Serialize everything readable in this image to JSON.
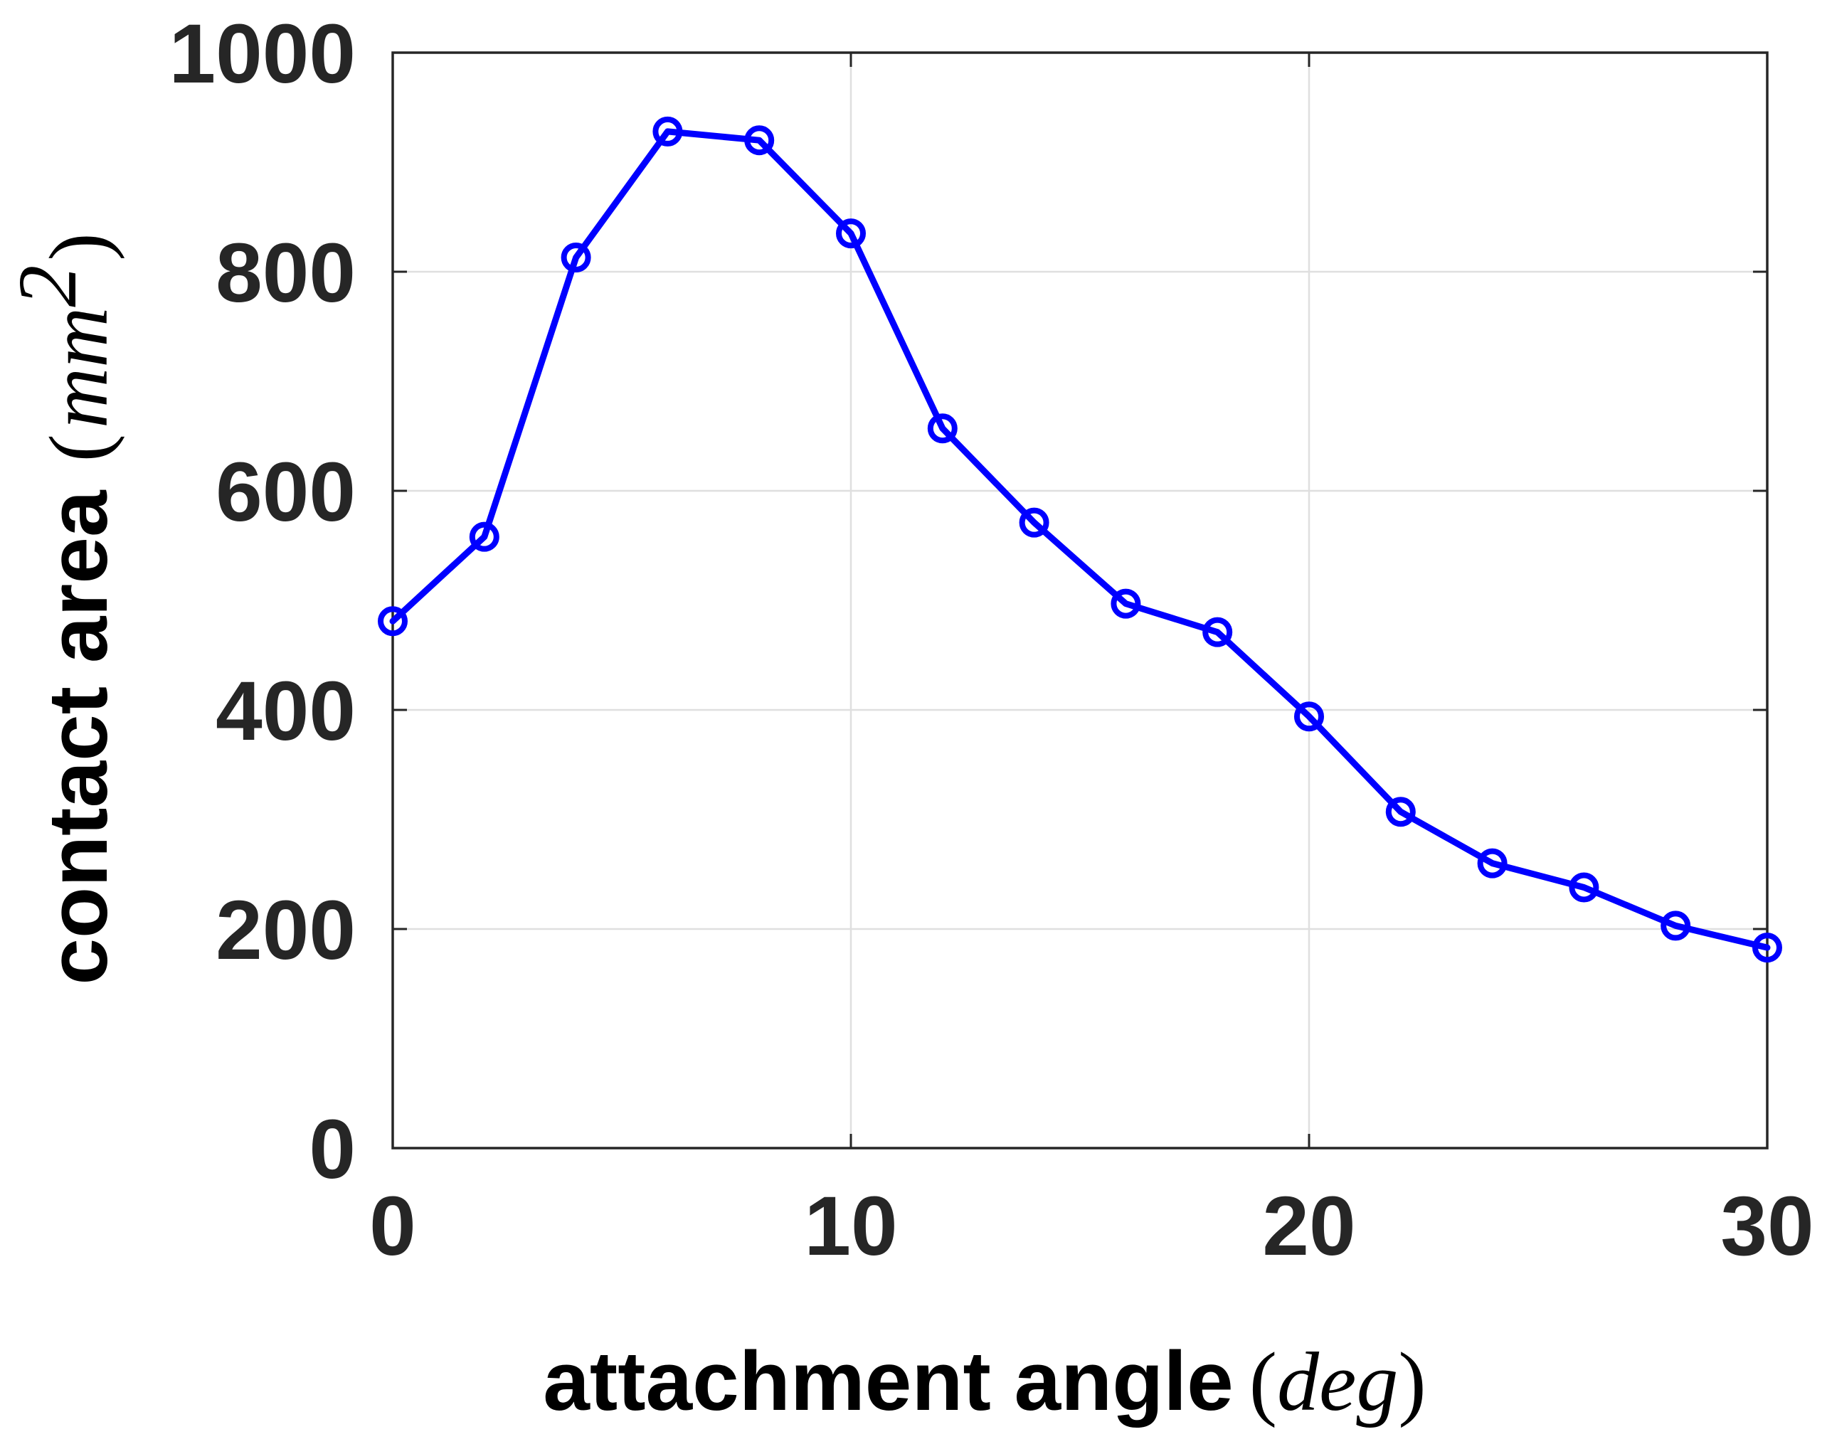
{
  "colors": {
    "series": "#0000ff",
    "grid": "#dfdfdf",
    "axis": "#262626",
    "text": "#000000"
  },
  "chart_data": {
    "type": "line",
    "title": "",
    "xlabel": {
      "text": "attachment angle",
      "unit": "deg",
      "open_paren": "(",
      "close_paren": ")"
    },
    "ylabel": {
      "text": "contact area",
      "unit": "mm",
      "unit_exponent": "2",
      "open_paren": "(",
      "close_paren": ")"
    },
    "xlim": [
      0,
      30
    ],
    "ylim": [
      0,
      1000
    ],
    "xticks": [
      0,
      10,
      20,
      30
    ],
    "yticks": [
      0,
      200,
      400,
      600,
      800,
      1000
    ],
    "xtick_labels": [
      "0",
      "10",
      "20",
      "30"
    ],
    "ytick_labels": [
      "0",
      "200",
      "400",
      "600",
      "800",
      "1000"
    ],
    "grid": true,
    "marker": "circle",
    "series": [
      {
        "x": [
          0,
          2,
          4,
          6,
          8,
          10,
          12,
          14,
          16,
          18,
          20,
          22,
          24,
          26,
          28,
          30
        ],
        "y": [
          481,
          558,
          813,
          928,
          920,
          835,
          657,
          571,
          497,
          471,
          394,
          307,
          260,
          238,
          203,
          183
        ]
      }
    ]
  }
}
